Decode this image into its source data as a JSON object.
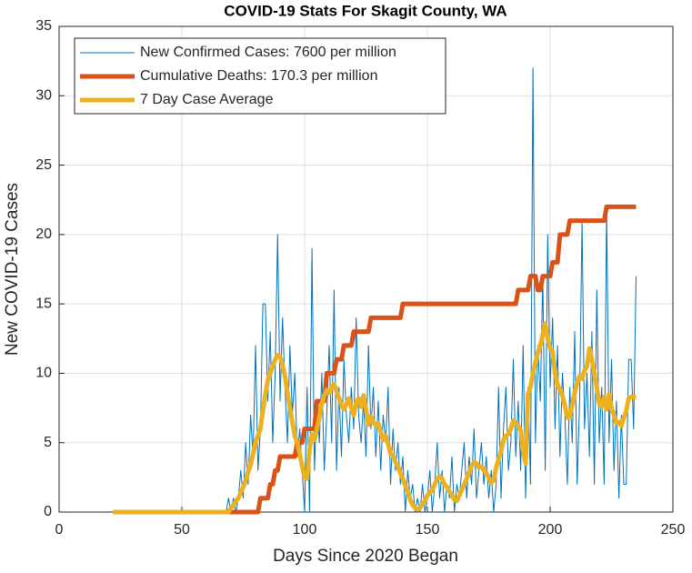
{
  "chart_data": {
    "type": "line",
    "title": "COVID-19 Stats For Skagit County, WA",
    "xlabel": "Days Since 2020 Began",
    "ylabel": "New COVID-19 Cases",
    "xlim": [
      0,
      250
    ],
    "xticks": [
      0,
      50,
      100,
      150,
      200,
      250
    ],
    "ylim": [
      0,
      35
    ],
    "yticks": [
      0,
      5,
      10,
      15,
      20,
      25,
      30,
      35
    ],
    "grid": true,
    "legend": "northwest",
    "x": [
      22,
      23,
      24,
      25,
      26,
      27,
      28,
      29,
      30,
      31,
      32,
      33,
      34,
      35,
      36,
      37,
      38,
      39,
      40,
      41,
      42,
      43,
      44,
      45,
      46,
      47,
      48,
      49,
      50,
      51,
      52,
      53,
      54,
      55,
      56,
      57,
      58,
      59,
      60,
      61,
      62,
      63,
      64,
      65,
      66,
      67,
      68,
      69,
      70,
      71,
      72,
      73,
      74,
      75,
      76,
      77,
      78,
      79,
      80,
      81,
      82,
      83,
      84,
      85,
      86,
      87,
      88,
      89,
      90,
      91,
      92,
      93,
      94,
      95,
      96,
      97,
      98,
      99,
      100,
      101,
      102,
      103,
      104,
      105,
      106,
      107,
      108,
      109,
      110,
      111,
      112,
      113,
      114,
      115,
      116,
      117,
      118,
      119,
      120,
      121,
      122,
      123,
      124,
      125,
      126,
      127,
      128,
      129,
      130,
      131,
      132,
      133,
      134,
      135,
      136,
      137,
      138,
      139,
      140,
      141,
      142,
      143,
      144,
      145,
      146,
      147,
      148,
      149,
      150,
      151,
      152,
      153,
      154,
      155,
      156,
      157,
      158,
      159,
      160,
      161,
      162,
      163,
      164,
      165,
      166,
      167,
      168,
      169,
      170,
      171,
      172,
      173,
      174,
      175,
      176,
      177,
      178,
      179,
      180,
      181,
      182,
      183,
      184,
      185,
      186,
      187,
      188,
      189,
      190,
      191,
      192,
      193,
      194,
      195,
      196,
      197,
      198,
      199,
      200,
      201,
      202,
      203,
      204,
      205,
      206,
      207,
      208,
      209,
      210,
      211,
      212,
      213,
      214,
      215,
      216,
      217,
      218,
      219,
      220,
      221,
      222,
      223,
      224,
      225,
      226,
      227,
      228,
      229,
      230,
      231,
      232,
      233,
      234,
      235
    ],
    "series": [
      {
        "name": "New Confirmed Cases: 7600 per million",
        "color": "#0072bd",
        "line_width": 1,
        "values": [
          0,
          0,
          0,
          0,
          0,
          0,
          0,
          0,
          0,
          0,
          0,
          0,
          0,
          0,
          0,
          0,
          0,
          0,
          0,
          0,
          0,
          0,
          0,
          0,
          0,
          0,
          0,
          0,
          0,
          0,
          0,
          0,
          0,
          0,
          0,
          0,
          0,
          0,
          0,
          0,
          0,
          0,
          0,
          0,
          0,
          0,
          0,
          1,
          0,
          1,
          0,
          1,
          3,
          1,
          5,
          2,
          7,
          4,
          12,
          3,
          6,
          15,
          15,
          8,
          13,
          5,
          10,
          20,
          8,
          14,
          9,
          5,
          12,
          7,
          10,
          4,
          6,
          3,
          0,
          9,
          0,
          19,
          3,
          8,
          5,
          10,
          3,
          7,
          12,
          5,
          16,
          3,
          9,
          4,
          11,
          7,
          5,
          9,
          6,
          14,
          7,
          5,
          8,
          4,
          12,
          6,
          9,
          4,
          8,
          3,
          7,
          5,
          9,
          2,
          6,
          3,
          5,
          2,
          4,
          0,
          3,
          1,
          2,
          0,
          1,
          0,
          2,
          0,
          1,
          3,
          0,
          2,
          5,
          1,
          3,
          0,
          2,
          1,
          4,
          0,
          2,
          1,
          3,
          5,
          1,
          4,
          2,
          6,
          1,
          3,
          5,
          2,
          4,
          1,
          3,
          0,
          2,
          9,
          1,
          6,
          9,
          3,
          5,
          11,
          4,
          8,
          3,
          12,
          1,
          9,
          2,
          32,
          5,
          12,
          8,
          17,
          3,
          20,
          9,
          14,
          6,
          12,
          4,
          10,
          7,
          2,
          9,
          5,
          13,
          2,
          8,
          21,
          6,
          10,
          4,
          13,
          2,
          16,
          5,
          9,
          2,
          22,
          5,
          11,
          3,
          8,
          1,
          7,
          2,
          2,
          11,
          11,
          6,
          17
        ]
      },
      {
        "name": "Cumulative Deaths: 170.3 per million",
        "color": "#d95319",
        "line_width": 5,
        "values": [
          0,
          0,
          0,
          0,
          0,
          0,
          0,
          0,
          0,
          0,
          0,
          0,
          0,
          0,
          0,
          0,
          0,
          0,
          0,
          0,
          0,
          0,
          0,
          0,
          0,
          0,
          0,
          0,
          0,
          0,
          0,
          0,
          0,
          0,
          0,
          0,
          0,
          0,
          0,
          0,
          0,
          0,
          0,
          0,
          0,
          0,
          0,
          0,
          0,
          0,
          0,
          0,
          0,
          0,
          0,
          0,
          0,
          0,
          0,
          0,
          1,
          1,
          1,
          1,
          2,
          2,
          3,
          3,
          4,
          4,
          4,
          4,
          4,
          4,
          4,
          5,
          5,
          5,
          6,
          6,
          6,
          6,
          6,
          8,
          8,
          8,
          8,
          10,
          10,
          10,
          10,
          11,
          11,
          11,
          12,
          12,
          12,
          12,
          13,
          13,
          13,
          13,
          13,
          13,
          13,
          14,
          14,
          14,
          14,
          14,
          14,
          14,
          14,
          14,
          14,
          14,
          14,
          14,
          15,
          15,
          15,
          15,
          15,
          15,
          15,
          15,
          15,
          15,
          15,
          15,
          15,
          15,
          15,
          15,
          15,
          15,
          15,
          15,
          15,
          15,
          15,
          15,
          15,
          15,
          15,
          15,
          15,
          15,
          15,
          15,
          15,
          15,
          15,
          15,
          15,
          15,
          15,
          15,
          15,
          15,
          15,
          15,
          15,
          15,
          15,
          16,
          16,
          16,
          16,
          16,
          17,
          17,
          17,
          16,
          16,
          17,
          17,
          17,
          17,
          18,
          18,
          18,
          20,
          20,
          20,
          20,
          21,
          21,
          21,
          21,
          21,
          21,
          21,
          21,
          21,
          21,
          21,
          21,
          21,
          21,
          21,
          22,
          22,
          22,
          22,
          22,
          22,
          22,
          22,
          22,
          22,
          22,
          22,
          22
        ]
      },
      {
        "name": "7 Day Case Average",
        "color": "#edb120",
        "line_width": 5,
        "values": [
          0,
          0,
          0,
          0,
          0,
          0,
          0,
          0,
          0,
          0,
          0,
          0,
          0,
          0,
          0,
          0,
          0,
          0,
          0,
          0,
          0,
          0,
          0,
          0,
          0,
          0,
          0,
          0,
          0,
          0,
          0,
          0,
          0,
          0,
          0,
          0,
          0,
          0,
          0,
          0,
          0,
          0,
          0,
          0,
          0,
          0,
          0,
          0,
          0.3,
          0.5,
          0.8,
          1,
          1.4,
          1.8,
          2.3,
          2.9,
          3.4,
          4.2,
          5,
          5.5,
          6,
          7.3,
          8.5,
          9.5,
          10,
          10.5,
          11,
          11.3,
          11.2,
          10.6,
          9.8,
          8.6,
          7.5,
          6.5,
          5.5,
          5,
          4.2,
          3.3,
          2.5,
          2.4,
          4.5,
          5.6,
          5.2,
          6,
          6.8,
          7.8,
          8.4,
          8.8,
          8.6,
          9,
          9.2,
          8.7,
          8.2,
          7.7,
          7.4,
          7.8,
          8.2,
          7.5,
          7,
          7.9,
          8.2,
          7.6,
          8.4,
          7.4,
          6.3,
          6.9,
          6.5,
          6.2,
          6.4,
          5.8,
          5.2,
          5.5,
          4.9,
          4.2,
          4.1,
          3.6,
          3.3,
          2.8,
          2.4,
          1.9,
          1.5,
          0.9,
          0.5,
          0.3,
          0.2,
          0.3,
          0.6,
          0.8,
          1.2,
          1.4,
          1.6,
          2,
          2.4,
          2.6,
          2.4,
          2,
          1.8,
          1.5,
          1.2,
          0.9,
          0.8,
          1.2,
          1.6,
          2,
          2.4,
          2.9,
          3.3,
          3.6,
          3.5,
          3.2,
          3.3,
          3,
          2.8,
          2.5,
          2.1,
          2.3,
          3.2,
          3.8,
          4.4,
          5.2,
          5.5,
          5.6,
          6,
          6.6,
          6.4,
          6.2,
          5.9,
          4.5,
          3.5,
          8.5,
          9,
          10,
          10.8,
          11.5,
          12,
          12.8,
          13.6,
          12.5,
          11.8,
          11.6,
          10,
          9.2,
          8.8,
          8.4,
          7.7,
          6.8,
          6.9,
          7.7,
          8.6,
          9.3,
          9.8,
          9.6,
          10.2,
          10.5,
          11.8,
          11,
          10,
          9,
          7.8,
          7.6,
          8.3,
          7.4,
          8.5,
          7.5,
          7,
          6.4,
          6.5,
          6.2,
          6.8,
          7.3,
          8.2,
          8.3,
          8.3,
          8.3
        ]
      }
    ]
  }
}
